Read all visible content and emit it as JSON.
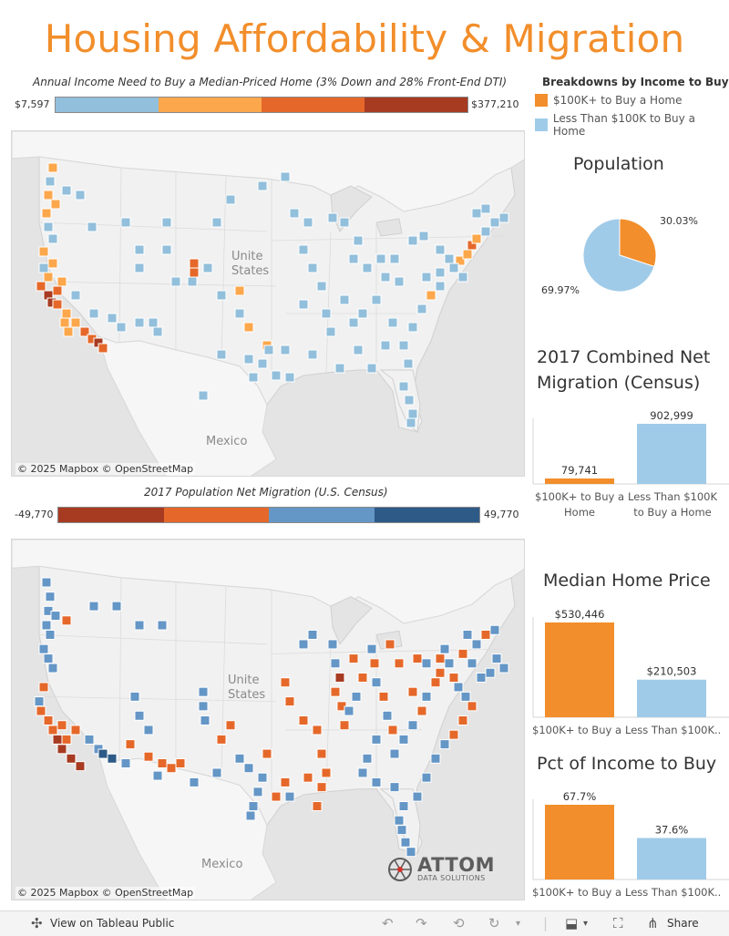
{
  "header": {
    "title": "Housing Affordability & Migration"
  },
  "income_legend": {
    "caption": "Annual Income Need to Buy a Median-Priced Home (3% Down and 28% Front-End DTI)",
    "min_label": "$7,597",
    "max_label": "$377,210",
    "colors": [
      "#92bfdb",
      "#fca74b",
      "#e5682a",
      "#a73b22"
    ]
  },
  "breakdowns": {
    "title": "Breakdowns by Income to Buy",
    "items": [
      {
        "label": "$100K+ to Buy a Home",
        "color": "#f28e2b"
      },
      {
        "label": "Less Than $100K to Buy a Home",
        "color": "#a0cbe8"
      }
    ]
  },
  "map1": {
    "credit": "© 2025 Mapbox  © OpenStreetMap",
    "label_country": "Unite\nStates",
    "label_mexico": "Mexico"
  },
  "migration_legend": {
    "caption": "2017 Population Net Migration (U.S. Census)",
    "min_label": "-49,770",
    "max_label": "49,770",
    "colors": [
      "#a73b22",
      "#e5682a",
      "#6496c6",
      "#2e5a87"
    ]
  },
  "map2": {
    "credit": "© 2025 Mapbox  © OpenStreetMap",
    "label_country": "Unite\nStates",
    "label_mexico": "Mexico"
  },
  "attom": {
    "word": "ATTOM",
    "sub": "DATA SOLUTIONS"
  },
  "population": {
    "title": "Population",
    "chart_data": {
      "type": "pie",
      "slices": [
        {
          "label": "$100K+ to Buy a Home",
          "value": 30.03,
          "display": "30.03%",
          "color": "#f28e2b"
        },
        {
          "label": "Less Than $100K to Buy a Home",
          "value": 69.97,
          "display": "69.97%",
          "color": "#a0cbe8"
        }
      ]
    }
  },
  "net_migration": {
    "title": "2017 Combined Net Migration (Census)",
    "chart_data": {
      "type": "bar",
      "categories": [
        "$100K+ to Buy a Home",
        "Less Than $100K to Buy a Home"
      ],
      "category_labels": [
        "$100K+ to Buy a\nHome",
        "Less Than $100K\nto Buy a Home"
      ],
      "values": [
        79741,
        902999
      ],
      "value_labels": [
        "79,741",
        "902,999"
      ],
      "colors": [
        "#f28e2b",
        "#a0cbe8"
      ],
      "ylim": [
        0,
        902999
      ]
    }
  },
  "median_price": {
    "title": "Median Home Price",
    "chart_data": {
      "type": "bar",
      "categories": [
        "$100K+ to Buy a Home",
        "Less Than $100K to Buy a Home"
      ],
      "category_labels": [
        "$100K+ to Buy a ...",
        "Less Than $100K..."
      ],
      "values": [
        530446,
        210503
      ],
      "value_labels": [
        "$530,446",
        "$210,503"
      ],
      "colors": [
        "#f28e2b",
        "#a0cbe8"
      ],
      "ylim": [
        0,
        530446
      ]
    }
  },
  "pct_income": {
    "title": "Pct of Income to Buy",
    "chart_data": {
      "type": "bar",
      "categories": [
        "$100K+ to Buy a Home",
        "Less Than $100K to Buy a Home"
      ],
      "category_labels": [
        "$100K+ to Buy a ...",
        "Less Than $100K..."
      ],
      "values": [
        67.7,
        37.6
      ],
      "value_labels": [
        "67.7%",
        "37.6%"
      ],
      "colors": [
        "#f28e2b",
        "#a0cbe8"
      ],
      "ylim": [
        0,
        67.7
      ]
    }
  },
  "footer": {
    "view_label": "View on Tableau Public",
    "share_label": "Share"
  }
}
